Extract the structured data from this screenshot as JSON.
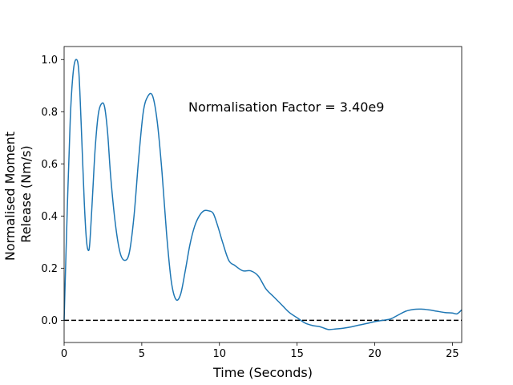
{
  "chart_data": {
    "type": "line",
    "title": "",
    "xlabel": "Time (Seconds)",
    "ylabel_lines": [
      "Normalised Moment",
      "Release (Nm/s)"
    ],
    "annotation": "Normalisation Factor = 3.40e9",
    "xlim": [
      0,
      25.6
    ],
    "ylim": [
      -0.085,
      1.05
    ],
    "x_ticks": [
      0,
      5,
      10,
      15,
      20,
      25
    ],
    "x_tick_labels": [
      "0",
      "5",
      "10",
      "15",
      "20",
      "25"
    ],
    "y_ticks": [
      0.0,
      0.2,
      0.4,
      0.6,
      0.8,
      1.0
    ],
    "y_tick_labels": [
      "0.0",
      "0.2",
      "0.4",
      "0.6",
      "0.8",
      "1.0"
    ],
    "grid": false,
    "reference_line": {
      "y": 0.0,
      "style": "dashed",
      "color": "#000000"
    },
    "series": [
      {
        "color": "#1f77b4",
        "x": [
          0,
          0.2,
          0.4,
          0.6,
          0.8,
          0.95,
          1.1,
          1.3,
          1.45,
          1.6,
          1.7,
          1.85,
          2.0,
          2.2,
          2.4,
          2.6,
          2.8,
          3.0,
          3.3,
          3.6,
          3.9,
          4.2,
          4.5,
          4.8,
          5.1,
          5.4,
          5.7,
          6.0,
          6.3,
          6.6,
          6.9,
          7.2,
          7.5,
          7.8,
          8.1,
          8.4,
          8.7,
          9.0,
          9.3,
          9.6,
          9.9,
          10.2,
          10.6,
          11.0,
          11.5,
          12.0,
          12.5,
          13.0,
          13.5,
          14.0,
          14.5,
          15.0,
          15.5,
          16.0,
          16.5,
          17.0,
          17.5,
          18.0,
          18.5,
          19.0,
          19.5,
          20.0,
          20.5,
          21.0,
          21.5,
          22.0,
          22.5,
          23.0,
          23.5,
          24.0,
          24.5,
          25.0,
          25.3,
          25.6
        ],
        "y": [
          0.0,
          0.42,
          0.78,
          0.96,
          1.0,
          0.95,
          0.75,
          0.45,
          0.3,
          0.27,
          0.34,
          0.5,
          0.66,
          0.79,
          0.83,
          0.82,
          0.72,
          0.55,
          0.37,
          0.26,
          0.23,
          0.26,
          0.4,
          0.62,
          0.8,
          0.86,
          0.86,
          0.76,
          0.57,
          0.33,
          0.15,
          0.08,
          0.1,
          0.19,
          0.29,
          0.36,
          0.4,
          0.42,
          0.42,
          0.41,
          0.36,
          0.3,
          0.23,
          0.21,
          0.19,
          0.19,
          0.17,
          0.12,
          0.09,
          0.06,
          0.03,
          0.01,
          -0.01,
          -0.02,
          -0.025,
          -0.035,
          -0.033,
          -0.03,
          -0.025,
          -0.018,
          -0.012,
          -0.005,
          0.0,
          0.005,
          0.02,
          0.035,
          0.042,
          0.043,
          0.04,
          0.035,
          0.03,
          0.028,
          0.025,
          0.04
        ]
      }
    ]
  }
}
